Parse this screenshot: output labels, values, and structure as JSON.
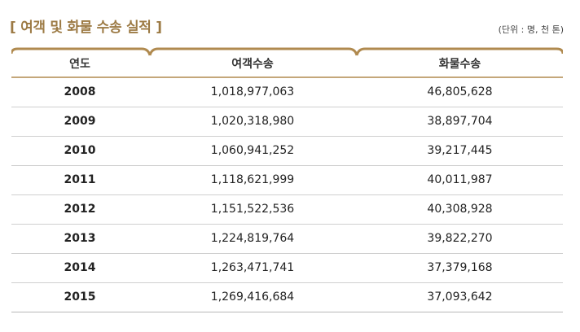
{
  "title": "[ 여객 및 화물 수송 실적 ]",
  "unit": "(단위 : 명, 천 톤)",
  "columns": [
    "연도",
    "여객수송",
    "화물수송"
  ],
  "rows": [
    {
      "year": "2008",
      "passenger": "1,018,977,063",
      "freight": "46,805,628"
    },
    {
      "year": "2009",
      "passenger": "1,020,318,980",
      "freight": "38,897,704"
    },
    {
      "year": "2010",
      "passenger": "1,060,941,252",
      "freight": "39,217,445"
    },
    {
      "year": "2011",
      "passenger": "1,118,621,999",
      "freight": "40,011,987"
    },
    {
      "year": "2012",
      "passenger": "1,151,522,536",
      "freight": "40,308,928"
    },
    {
      "year": "2013",
      "passenger": "1,224,819,764",
      "freight": "39,822,270"
    },
    {
      "year": "2014",
      "passenger": "1,263,471,741",
      "freight": "37,379,168"
    },
    {
      "year": "2015",
      "passenger": "1,269,416,684",
      "freight": "37,093,642"
    }
  ],
  "colors": {
    "accent": "#b08a4f",
    "title": "#9c7a44"
  }
}
